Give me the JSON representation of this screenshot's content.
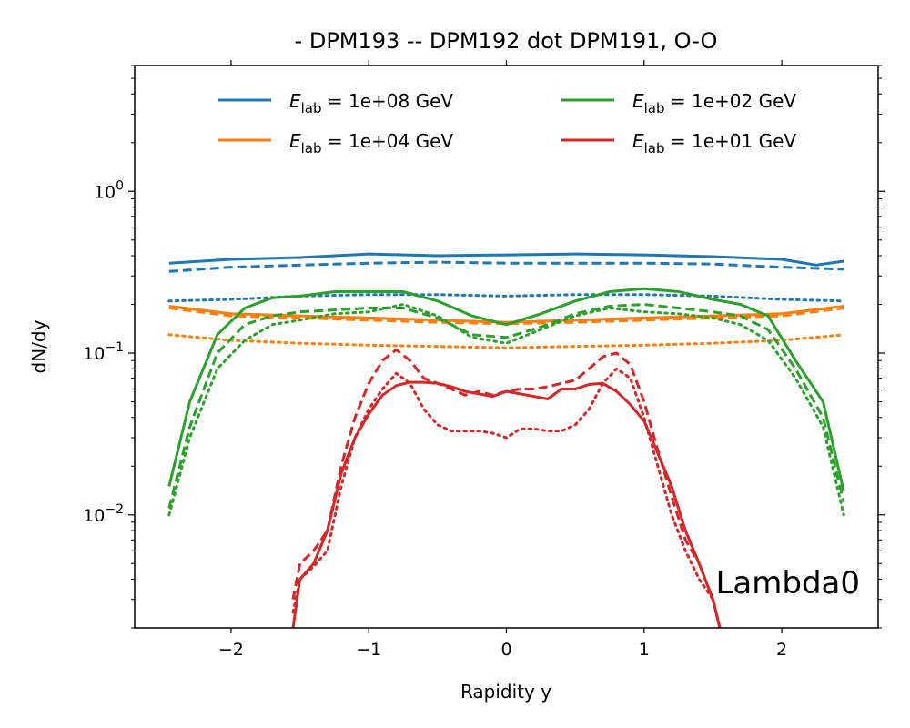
{
  "chart_data": {
    "type": "line",
    "title": "- DPM193 -- DPM192 dot DPM191, O-O",
    "xlabel": "Rapidity y",
    "ylabel": "dN/dy",
    "xlim": [
      -2.7,
      2.7
    ],
    "ylim": [
      0.002,
      6
    ],
    "yscale": "log",
    "grid": false,
    "legend_position": "top",
    "annotation": "Lambda0",
    "xticks": [
      -2,
      -1,
      0,
      1,
      2
    ],
    "xtick_labels": [
      "−2",
      "−1",
      "0",
      "1",
      "2"
    ],
    "yticks": [
      0.01,
      0.1,
      1
    ],
    "ytick_labels": [
      {
        "base": "10",
        "exp": "−2"
      },
      {
        "base": "10",
        "exp": "−1"
      },
      {
        "base": "10",
        "exp": "0"
      }
    ],
    "linestyles": {
      "solid": "DPM193",
      "dashed": "DPM192",
      "dotted": "DPM191"
    },
    "legend": [
      {
        "prefix": "E",
        "sub": "lab",
        "text": " = 1e+08 GeV",
        "color": "#1f77b4"
      },
      {
        "prefix": "E",
        "sub": "lab",
        "text": " = 1e+04 GeV",
        "color": "#ff7f0e"
      },
      {
        "prefix": "E",
        "sub": "lab",
        "text": " = 1e+02 GeV",
        "color": "#2ca02c"
      },
      {
        "prefix": "E",
        "sub": "lab",
        "text": " = 1e+01 GeV",
        "color": "#d62728"
      }
    ],
    "series": [
      {
        "color": "#1f77b4",
        "style": "solid",
        "x": [
          -2.45,
          -2.0,
          -1.5,
          -1.0,
          -0.5,
          0.0,
          0.5,
          1.0,
          1.5,
          2.0,
          2.25,
          2.45
        ],
        "y": [
          0.36,
          0.38,
          0.39,
          0.41,
          0.4,
          0.405,
          0.41,
          0.405,
          0.395,
          0.38,
          0.35,
          0.37
        ]
      },
      {
        "color": "#1f77b4",
        "style": "dashed",
        "x": [
          -2.45,
          -2.0,
          -1.5,
          -1.0,
          -0.5,
          0.0,
          0.5,
          1.0,
          1.5,
          2.0,
          2.45
        ],
        "y": [
          0.32,
          0.34,
          0.35,
          0.36,
          0.365,
          0.36,
          0.36,
          0.36,
          0.355,
          0.34,
          0.33
        ]
      },
      {
        "color": "#1f77b4",
        "style": "dotted",
        "x": [
          -2.45,
          -2.0,
          -1.5,
          -1.0,
          -0.5,
          0.0,
          0.5,
          1.0,
          1.5,
          2.0,
          2.45
        ],
        "y": [
          0.21,
          0.215,
          0.225,
          0.23,
          0.23,
          0.225,
          0.23,
          0.23,
          0.225,
          0.215,
          0.21
        ]
      },
      {
        "color": "#ff7f0e",
        "style": "solid",
        "x": [
          -2.45,
          -2.0,
          -1.5,
          -1.0,
          -0.5,
          0.0,
          0.5,
          1.0,
          1.5,
          2.0,
          2.45
        ],
        "y": [
          0.195,
          0.175,
          0.17,
          0.165,
          0.16,
          0.155,
          0.16,
          0.165,
          0.17,
          0.175,
          0.195
        ]
      },
      {
        "color": "#ff7f0e",
        "style": "dashed",
        "x": [
          -2.45,
          -2.0,
          -1.5,
          -1.0,
          -0.5,
          0.0,
          0.5,
          1.0,
          1.5,
          2.0,
          2.45
        ],
        "y": [
          0.19,
          0.17,
          0.165,
          0.16,
          0.155,
          0.152,
          0.155,
          0.16,
          0.165,
          0.17,
          0.19
        ]
      },
      {
        "color": "#ff7f0e",
        "style": "dotted",
        "x": [
          -2.45,
          -2.0,
          -1.5,
          -1.0,
          -0.5,
          0.0,
          0.5,
          1.0,
          1.5,
          2.0,
          2.45
        ],
        "y": [
          0.13,
          0.12,
          0.115,
          0.112,
          0.11,
          0.108,
          0.11,
          0.112,
          0.115,
          0.12,
          0.13
        ]
      },
      {
        "color": "#2ca02c",
        "style": "solid",
        "x": [
          -2.45,
          -2.3,
          -2.1,
          -1.9,
          -1.7,
          -1.5,
          -1.25,
          -1.0,
          -0.75,
          -0.5,
          -0.25,
          0.0,
          0.25,
          0.5,
          0.75,
          1.0,
          1.25,
          1.5,
          1.7,
          1.9,
          2.1,
          2.3,
          2.45
        ],
        "y": [
          0.015,
          0.05,
          0.13,
          0.19,
          0.22,
          0.225,
          0.24,
          0.24,
          0.24,
          0.21,
          0.17,
          0.15,
          0.175,
          0.21,
          0.24,
          0.25,
          0.24,
          0.215,
          0.2,
          0.17,
          0.09,
          0.05,
          0.014
        ]
      },
      {
        "color": "#2ca02c",
        "style": "dashed",
        "x": [
          -2.45,
          -2.3,
          -2.1,
          -1.9,
          -1.7,
          -1.5,
          -1.25,
          -1.0,
          -0.75,
          -0.5,
          -0.25,
          0.0,
          0.25,
          0.5,
          0.75,
          1.0,
          1.25,
          1.5,
          1.7,
          1.9,
          2.1,
          2.3,
          2.45
        ],
        "y": [
          0.011,
          0.035,
          0.1,
          0.15,
          0.17,
          0.18,
          0.185,
          0.19,
          0.19,
          0.165,
          0.13,
          0.125,
          0.145,
          0.175,
          0.195,
          0.2,
          0.19,
          0.18,
          0.17,
          0.14,
          0.08,
          0.04,
          0.012
        ]
      },
      {
        "color": "#2ca02c",
        "style": "dotted",
        "x": [
          -2.45,
          -2.3,
          -2.1,
          -1.9,
          -1.7,
          -1.5,
          -1.25,
          -1.0,
          -0.75,
          -0.5,
          -0.25,
          0.0,
          0.25,
          0.5,
          0.75,
          1.0,
          1.25,
          1.5,
          1.7,
          1.9,
          2.1,
          2.3,
          2.45
        ],
        "y": [
          0.01,
          0.03,
          0.08,
          0.12,
          0.15,
          0.16,
          0.175,
          0.18,
          0.2,
          0.17,
          0.125,
          0.115,
          0.14,
          0.17,
          0.19,
          0.18,
          0.175,
          0.165,
          0.15,
          0.12,
          0.07,
          0.035,
          0.01
        ]
      },
      {
        "color": "#d62728",
        "style": "solid",
        "x": [
          -1.55,
          -1.5,
          -1.4,
          -1.3,
          -1.2,
          -1.1,
          -1.0,
          -0.9,
          -0.8,
          -0.7,
          -0.6,
          -0.5,
          -0.4,
          -0.3,
          -0.2,
          -0.1,
          0.0,
          0.1,
          0.2,
          0.3,
          0.4,
          0.5,
          0.6,
          0.7,
          0.8,
          0.9,
          1.0,
          1.1,
          1.2,
          1.3,
          1.4,
          1.5,
          1.55
        ],
        "y": [
          0.002,
          0.004,
          0.005,
          0.008,
          0.018,
          0.03,
          0.042,
          0.055,
          0.063,
          0.066,
          0.066,
          0.065,
          0.062,
          0.058,
          0.056,
          0.054,
          0.058,
          0.056,
          0.054,
          0.052,
          0.06,
          0.06,
          0.064,
          0.065,
          0.058,
          0.048,
          0.038,
          0.024,
          0.015,
          0.008,
          0.005,
          0.003,
          0.002
        ]
      },
      {
        "color": "#d62728",
        "style": "dashed",
        "x": [
          -1.55,
          -1.5,
          -1.4,
          -1.3,
          -1.2,
          -1.1,
          -1.0,
          -0.9,
          -0.8,
          -0.7,
          -0.6,
          -0.5,
          -0.4,
          -0.3,
          -0.2,
          -0.1,
          0.0,
          0.1,
          0.2,
          0.3,
          0.4,
          0.5,
          0.6,
          0.7,
          0.8,
          0.9,
          1.0,
          1.1,
          1.2,
          1.3,
          1.4,
          1.5,
          1.55
        ],
        "y": [
          0.003,
          0.005,
          0.006,
          0.008,
          0.02,
          0.04,
          0.065,
          0.09,
          0.105,
          0.09,
          0.07,
          0.065,
          0.06,
          0.055,
          0.058,
          0.055,
          0.058,
          0.06,
          0.06,
          0.062,
          0.065,
          0.068,
          0.08,
          0.095,
          0.1,
          0.085,
          0.05,
          0.025,
          0.013,
          0.007,
          0.005,
          0.003,
          0.002
        ]
      },
      {
        "color": "#d62728",
        "style": "dotted",
        "x": [
          -1.55,
          -1.5,
          -1.4,
          -1.3,
          -1.2,
          -1.1,
          -1.0,
          -0.9,
          -0.8,
          -0.7,
          -0.6,
          -0.5,
          -0.4,
          -0.3,
          -0.2,
          -0.1,
          0.0,
          0.1,
          0.2,
          0.3,
          0.4,
          0.5,
          0.6,
          0.7,
          0.8,
          0.9,
          1.0,
          1.1,
          1.2,
          1.3,
          1.4,
          1.5,
          1.55
        ],
        "y": [
          0.0025,
          0.004,
          0.0048,
          0.006,
          0.015,
          0.03,
          0.045,
          0.06,
          0.075,
          0.065,
          0.045,
          0.036,
          0.033,
          0.033,
          0.033,
          0.032,
          0.03,
          0.034,
          0.034,
          0.033,
          0.033,
          0.036,
          0.045,
          0.065,
          0.08,
          0.07,
          0.04,
          0.02,
          0.01,
          0.006,
          0.004,
          0.003,
          0.002
        ]
      }
    ]
  }
}
